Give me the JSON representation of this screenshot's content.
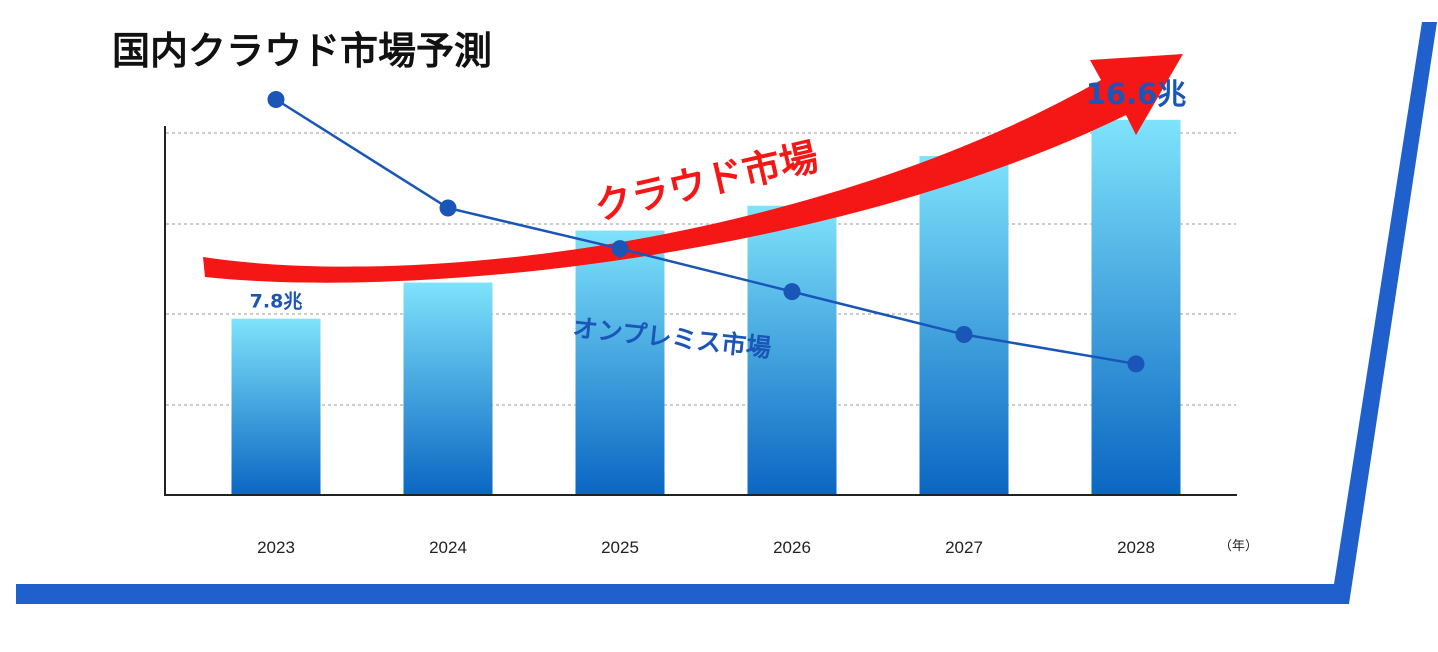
{
  "chart_data": {
    "type": "bar",
    "title": "国内クラウド市場予測",
    "categories": [
      "2023",
      "2024",
      "2025",
      "2026",
      "2027",
      "2028"
    ],
    "x_unit_label": "（年）",
    "ylim": [
      0,
      20
    ],
    "grid": true,
    "series": [
      {
        "name": "クラウド市場",
        "kind": "bar",
        "values": [
          7.8,
          9.4,
          11.7,
          12.8,
          15.0,
          16.6
        ]
      },
      {
        "name": "クラウド市場",
        "kind": "trend-arrow"
      },
      {
        "name": "オンプレミス市場",
        "kind": "line",
        "values": [
          17.5,
          12.7,
          10.9,
          9.0,
          7.1,
          5.8
        ]
      }
    ],
    "data_labels": [
      {
        "category": "2023",
        "text": "7.8兆"
      },
      {
        "category": "2028",
        "text": "16.6兆"
      }
    ]
  },
  "colors": {
    "bar_top": "#7ee3fb",
    "bar_bottom": "#0a66c2",
    "line": "#1a56b8",
    "arrow": "#f51616",
    "frame": "#2060cc",
    "label": "#1a56b8"
  }
}
